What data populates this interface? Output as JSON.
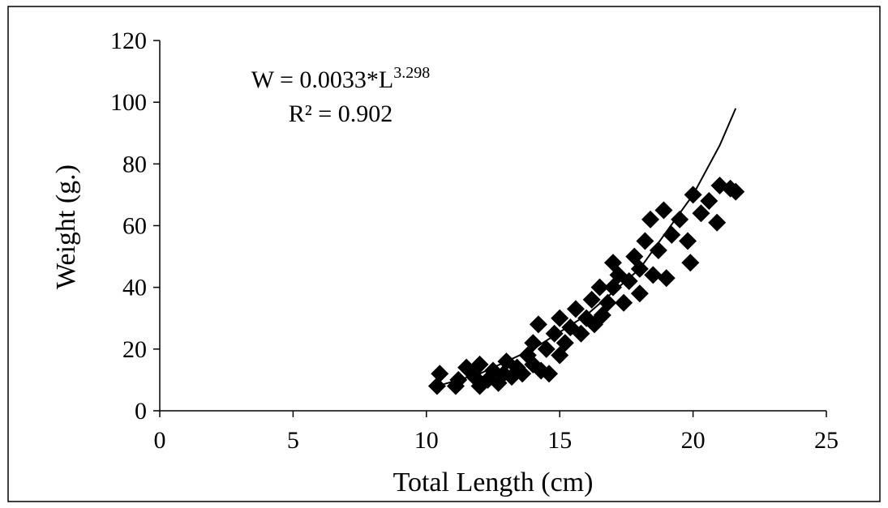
{
  "chart_data": {
    "type": "scatter",
    "x_label": "Total Length (cm)",
    "y_label": "Weight (g.)",
    "annotation": {
      "equation": "W = 0.0033*L",
      "exponent": "3.298",
      "r_squared": "R² = 0.902"
    },
    "xlim": [
      0,
      25
    ],
    "xticks": [
      0,
      5,
      10,
      15,
      20,
      25
    ],
    "ylim": [
      0,
      120
    ],
    "yticks": [
      0,
      20,
      40,
      60,
      80,
      100,
      120
    ],
    "grid": false,
    "series": [
      {
        "color": "#000000",
        "x": [
          10.4,
          10.5,
          11.1,
          11.2,
          11.5,
          11.8,
          12,
          12,
          12.3,
          12.5,
          12.7,
          12.9,
          13,
          13.2,
          13.4,
          13.6,
          13.8,
          14,
          14,
          14.2,
          14.3,
          14.5,
          14.6,
          14.8,
          15,
          15,
          15.2,
          15.4,
          15.6,
          15.8,
          16,
          16.2,
          16.3,
          16.5,
          16.6,
          16.8,
          17,
          17,
          17.2,
          17.4,
          17.6,
          17.8,
          18,
          18,
          18.2,
          18.4,
          18.5,
          18.7,
          18.9,
          19,
          19.2,
          19.5,
          19.8,
          19.9,
          20,
          20.3,
          20.6,
          20.9,
          21,
          21.4,
          21.6
        ],
        "values": [
          8,
          12,
          8,
          10,
          14,
          11,
          8,
          15,
          10,
          13,
          9,
          12,
          16,
          11,
          14,
          12,
          18,
          15,
          22,
          28,
          13,
          20,
          12,
          25,
          18,
          30,
          22,
          27,
          33,
          25,
          30,
          36,
          28,
          40,
          31,
          35,
          48,
          40,
          44,
          35,
          42,
          50,
          38,
          46,
          55,
          62,
          44,
          52,
          65,
          43,
          57,
          62,
          55,
          48,
          70,
          64,
          68,
          61,
          73,
          72,
          71
        ]
      },
      {
        "type": "line",
        "color": "#000000",
        "x": [
          10.4,
          12,
          14,
          16,
          18,
          20,
          21,
          21.6
        ],
        "values": [
          8,
          12,
          20,
          31,
          46,
          70,
          86,
          98
        ]
      }
    ]
  }
}
